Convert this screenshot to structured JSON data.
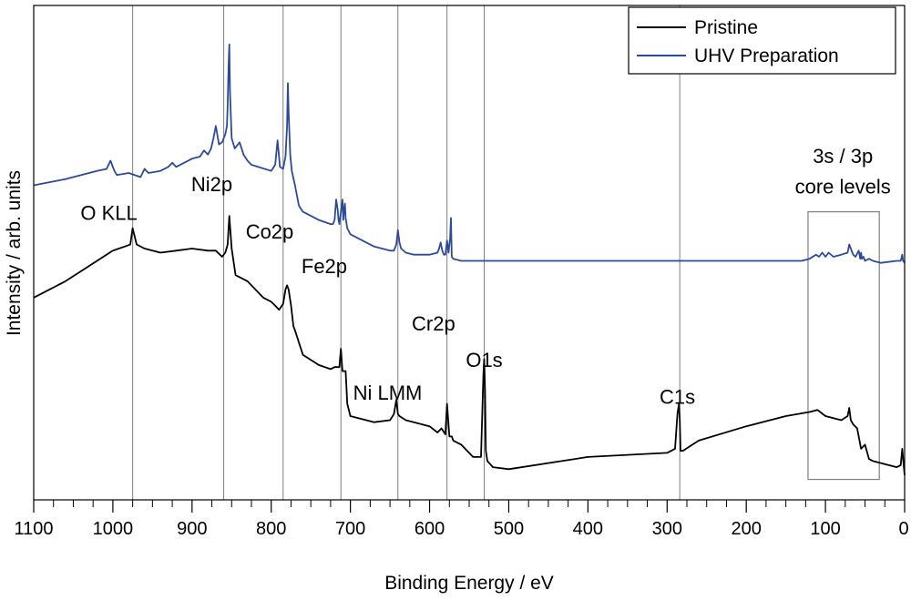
{
  "chart_data": {
    "type": "line",
    "title": "",
    "xlabel": "Binding Energy / eV",
    "ylabel": "Intensity / arb. units",
    "xlim": [
      1100,
      0
    ],
    "x_reversed": true,
    "x_ticks": [
      "1100",
      "1000",
      "900",
      "800",
      "700",
      "600",
      "500",
      "400",
      "300",
      "200",
      "100",
      "0"
    ],
    "y_ticks_shown": false,
    "grid": false,
    "legend_position": "top-right",
    "colors": {
      "pristine": "#000000",
      "uhv": "#2b4a9a",
      "guide": "#808080"
    },
    "series": [
      {
        "name": "Pristine",
        "color": "#000000",
        "x": [
          1100,
          1080,
          1060,
          1040,
          1020,
          1000,
          985,
          978,
          975,
          970,
          960,
          940,
          920,
          900,
          880,
          870,
          862,
          858,
          855,
          853,
          850,
          845,
          840,
          830,
          820,
          810,
          800,
          795,
          790,
          785,
          782,
          780,
          778,
          775,
          772,
          770,
          760,
          740,
          725,
          720,
          714,
          712,
          710,
          706,
          704,
          700,
          690,
          670,
          650,
          645,
          642,
          640,
          638,
          630,
          600,
          590,
          585,
          580,
          578,
          575,
          572,
          570,
          560,
          545,
          535,
          532,
          531,
          530,
          529,
          527,
          520,
          500,
          400,
          300,
          290,
          287,
          285,
          284,
          283,
          280,
          260,
          200,
          150,
          120,
          110,
          100,
          80,
          72,
          70,
          68,
          65,
          60,
          55,
          50,
          45,
          40,
          30,
          20,
          10,
          5,
          3,
          0
        ],
        "y": [
          1.0,
          1.4,
          1.8,
          2.3,
          2.8,
          3.3,
          3.5,
          3.6,
          4.4,
          3.6,
          3.4,
          3.2,
          3.3,
          3.4,
          3.3,
          3.3,
          3.0,
          3.2,
          3.6,
          5.0,
          3.4,
          2.1,
          2.0,
          1.8,
          1.4,
          1.0,
          0.8,
          0.6,
          0.4,
          0.7,
          1.4,
          1.6,
          1.4,
          0.6,
          -0.4,
          -0.6,
          -1.8,
          -2.3,
          -2.5,
          -2.4,
          -2.4,
          -1.5,
          -2.6,
          -2.6,
          -4.2,
          -4.8,
          -4.9,
          -5.1,
          -5.0,
          -4.7,
          -4.0,
          -4.7,
          -4.8,
          -5.0,
          -5.3,
          -5.6,
          -5.4,
          -5.7,
          -4.2,
          -5.8,
          -5.8,
          -6.0,
          -6.2,
          -6.8,
          -6.8,
          -2.8,
          -2.0,
          -3.5,
          -6.5,
          -7.0,
          -7.3,
          -7.4,
          -6.8,
          -6.6,
          -6.4,
          -4.7,
          -4.2,
          -5.0,
          -6.5,
          -6.5,
          -6.0,
          -5.3,
          -4.8,
          -4.6,
          -4.5,
          -4.8,
          -5.0,
          -4.8,
          -4.4,
          -5.0,
          -5.2,
          -5.4,
          -6.4,
          -6.2,
          -6.9,
          -7.0,
          -7.1,
          -7.2,
          -7.3,
          -7.2,
          -6.4,
          -7.7
        ]
      },
      {
        "name": "UHV Preparation",
        "color": "#2b4a9a",
        "x": [
          1100,
          1060,
          1040,
          1020,
          1008,
          1003,
          998,
          995,
          980,
          965,
          960,
          955,
          940,
          930,
          925,
          920,
          900,
          890,
          885,
          880,
          876,
          873,
          870,
          866,
          862,
          858,
          856,
          855,
          854,
          853,
          852,
          850,
          846,
          840,
          835,
          830,
          825,
          800,
          795,
          792,
          789,
          785,
          782,
          780,
          779,
          778,
          776,
          774,
          770,
          765,
          760,
          740,
          725,
          722,
          720,
          718,
          716,
          715,
          714,
          712,
          710,
          709,
          708,
          707,
          706,
          704,
          700,
          690,
          680,
          670,
          650,
          645,
          642,
          640,
          638,
          636,
          630,
          620,
          600,
          590,
          588,
          586,
          584,
          582,
          580,
          578,
          576,
          575,
          574,
          573,
          572,
          570,
          560,
          550,
          500,
          400,
          300,
          200,
          130,
          120,
          112,
          108,
          104,
          100,
          96,
          90,
          80,
          72,
          70,
          68,
          65,
          62,
          58,
          56,
          55,
          54,
          52,
          50,
          45,
          40,
          30,
          10,
          5,
          3,
          2,
          0
        ],
        "y": [
          6.5,
          6.8,
          7.0,
          7.2,
          7.3,
          7.7,
          7.2,
          7.0,
          7.1,
          6.9,
          7.3,
          7.1,
          7.2,
          7.4,
          7.6,
          7.4,
          7.8,
          7.9,
          8.2,
          8.0,
          8.3,
          8.8,
          9.4,
          8.5,
          8.6,
          9.0,
          9.4,
          10.4,
          12.2,
          13.4,
          11.0,
          8.8,
          8.3,
          8.6,
          8.0,
          7.7,
          7.5,
          7.2,
          7.5,
          8.7,
          7.4,
          7.3,
          7.9,
          9.4,
          11.5,
          10.1,
          8.0,
          7.2,
          6.5,
          5.5,
          5.2,
          4.8,
          4.6,
          4.6,
          4.8,
          5.8,
          5.3,
          4.8,
          4.6,
          5.2,
          5.8,
          4.8,
          5.3,
          5.6,
          4.9,
          4.4,
          4.1,
          3.9,
          3.7,
          3.5,
          3.3,
          3.3,
          3.6,
          4.3,
          3.7,
          3.4,
          3.2,
          3.1,
          3.1,
          3.2,
          3.4,
          3.7,
          3.3,
          3.1,
          3.1,
          3.8,
          3.2,
          3.6,
          3.9,
          4.9,
          3.0,
          2.9,
          2.8,
          2.8,
          2.8,
          2.8,
          2.8,
          2.8,
          2.8,
          2.9,
          3.1,
          3.0,
          3.2,
          3.0,
          3.2,
          3.0,
          3.1,
          3.2,
          3.6,
          3.4,
          3.1,
          3.0,
          3.3,
          2.9,
          3.2,
          2.9,
          3.0,
          2.8,
          2.9,
          2.8,
          2.7,
          2.8,
          2.8,
          3.1,
          2.8,
          2.7
        ]
      }
    ],
    "peak_lines_x": [
      975,
      860,
      785,
      712,
      640,
      578,
      531,
      284
    ],
    "annotations": [
      {
        "text": "O KLL",
        "x": 1005,
        "y": 4.8
      },
      {
        "text": "Ni2p",
        "x": 875,
        "y": 6.2
      },
      {
        "text": "Co2p",
        "x": 802,
        "y": 3.9
      },
      {
        "text": "Fe2p",
        "x": 733,
        "y": 2.2
      },
      {
        "text": "Cr2p",
        "x": 595,
        "y": -0.6
      },
      {
        "text": "Ni LMM",
        "x": 653,
        "y": -4.0
      },
      {
        "text": "O1s",
        "x": 531,
        "y": -2.4
      },
      {
        "text": "C1s",
        "x": 287,
        "y": -4.2
      },
      {
        "text": "3s / 3p",
        "x": 78,
        "y": 7.6
      },
      {
        "text": "core levels",
        "x": 78,
        "y": 6.1
      }
    ],
    "highlight_box": {
      "x_range": [
        122,
        32
      ],
      "y_range": [
        -7.9,
        5.2
      ]
    }
  }
}
